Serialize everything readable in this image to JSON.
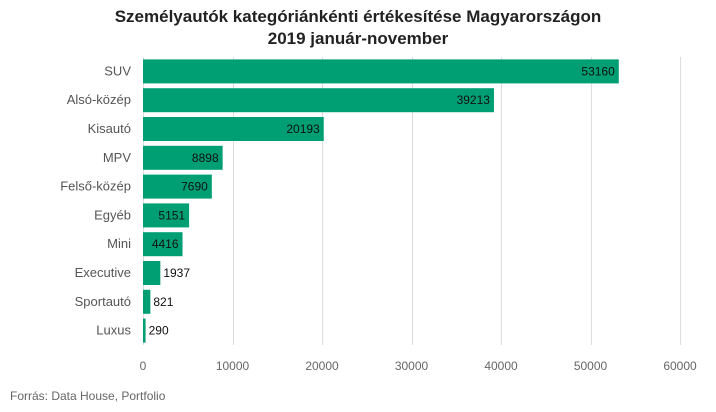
{
  "chart_data": {
    "type": "bar",
    "orientation": "horizontal",
    "title_line1": "Személyautók kategóriánkénti értékesítése Magyarországon",
    "title_line2": "2019 január-november",
    "categories": [
      "SUV",
      "Alsó-közép",
      "Kisautó",
      "MPV",
      "Felső-közép",
      "Egyéb",
      "Mini",
      "Executive",
      "Sportautó",
      "Luxus"
    ],
    "values": [
      53160,
      39213,
      20193,
      8898,
      7690,
      5151,
      4416,
      1937,
      821,
      290
    ],
    "value_labels": [
      "53160",
      "39213",
      "20193",
      "8898",
      "7690",
      "5151",
      "4416",
      "1937",
      "821",
      "290"
    ],
    "xlim": [
      0,
      60000
    ],
    "xticks": [
      0,
      10000,
      20000,
      30000,
      40000,
      50000,
      60000
    ],
    "xtick_labels": [
      "0",
      "10000",
      "20000",
      "30000",
      "40000",
      "50000",
      "60000"
    ],
    "grid": true,
    "legend": "none",
    "bar_color": "#009e73"
  },
  "source_text": "Forrás:  Data House, Portfolio"
}
